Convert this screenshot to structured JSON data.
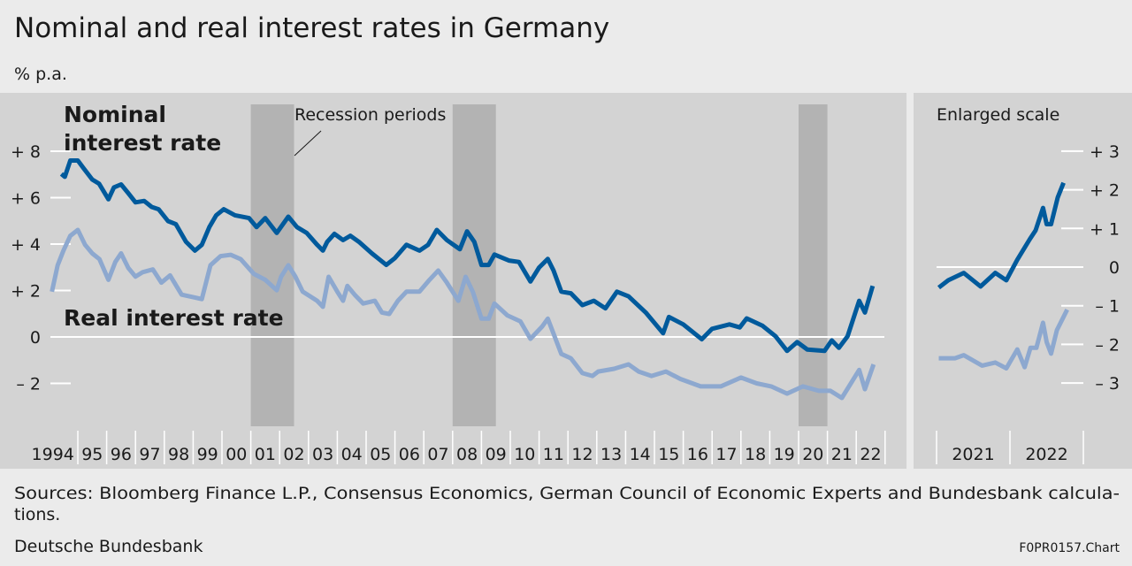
{
  "title": "Nominal and real interest rates in Germany",
  "unit": "% p.a.",
  "footer": {
    "sources_line1": "Sources: Bloomberg Finance L.P., Consensus Economics, German Council of Economic Experts and Bundesbank calcula-",
    "sources_line2": "tions.",
    "publisher": "Deutsche Bundesbank",
    "chart_code": "F0PR0157.Chart"
  },
  "colors": {
    "nominal": "#005a9c",
    "real": "#8da8cf",
    "recession": "#b3b3b3",
    "panel": "#d3d3d3",
    "background": "#ebebeb"
  },
  "chart_data": [
    {
      "type": "line",
      "title": "",
      "ylabel": "% p.a.",
      "ylim": [
        -4.2,
        10.5
      ],
      "xlim": [
        1994,
        2023
      ],
      "yticks": [
        {
          "v": 8,
          "label": "+ 8"
        },
        {
          "v": 6,
          "label": "+ 6"
        },
        {
          "v": 4,
          "label": "+ 4"
        },
        {
          "v": 2,
          "label": "+ 2"
        },
        {
          "v": 0,
          "label": "0"
        },
        {
          "v": -2,
          "label": "– 2"
        }
      ],
      "xtick_labels": [
        "1994",
        "95",
        "96",
        "97",
        "98",
        "99",
        "00",
        "01",
        "02",
        "03",
        "04",
        "05",
        "06",
        "07",
        "08",
        "09",
        "10",
        "11",
        "12",
        "13",
        "14",
        "15",
        "16",
        "17",
        "18",
        "19",
        "20",
        "21",
        "22"
      ],
      "annotation": "Recession periods",
      "recessions": [
        [
          2001.0,
          2002.5
        ],
        [
          2008.0,
          2009.5
        ],
        [
          2020.0,
          2021.0
        ]
      ],
      "series": [
        {
          "name": "Nominal interest rate",
          "name_line1": "Nominal",
          "name_line2": "interest rate",
          "x": [
            1994.43,
            1994.55,
            1994.74,
            1995.0,
            1995.2,
            1995.5,
            1995.74,
            1996.06,
            1996.25,
            1996.5,
            1996.75,
            1997.0,
            1997.3,
            1997.56,
            1997.8,
            1998.13,
            1998.4,
            1998.75,
            1999.06,
            1999.3,
            1999.56,
            1999.8,
            2000.06,
            2000.45,
            2000.94,
            2001.2,
            2001.5,
            2001.9,
            2002.3,
            2002.6,
            2002.94,
            2003.3,
            2003.5,
            2003.65,
            2003.9,
            2004.2,
            2004.45,
            2004.75,
            2005.2,
            2005.45,
            2005.7,
            2006.0,
            2006.4,
            2006.85,
            2007.15,
            2007.45,
            2007.8,
            2008.25,
            2008.5,
            2008.75,
            2009.0,
            2009.25,
            2009.45,
            2009.95,
            2010.3,
            2010.7,
            2011.0,
            2011.3,
            2011.5,
            2011.77,
            2012.1,
            2012.5,
            2012.9,
            2013.3,
            2013.7,
            2014.1,
            2014.7,
            2015.3,
            2015.5,
            2016.0,
            2016.64,
            2017.0,
            2017.6,
            2017.96,
            2018.2,
            2018.75,
            2019.2,
            2019.6,
            2019.95,
            2020.3,
            2020.9,
            2021.15,
            2021.4,
            2021.7,
            2022.1,
            2022.3,
            2022.57
          ],
          "y": [
            7.02,
            6.9,
            7.6,
            7.6,
            7.27,
            6.78,
            6.6,
            5.93,
            6.44,
            6.57,
            6.19,
            5.8,
            5.86,
            5.6,
            5.5,
            4.99,
            4.86,
            4.1,
            3.72,
            3.97,
            4.73,
            5.24,
            5.5,
            5.24,
            5.12,
            4.73,
            5.12,
            4.48,
            5.18,
            4.73,
            4.48,
            3.97,
            3.72,
            4.1,
            4.44,
            4.17,
            4.36,
            4.1,
            3.6,
            3.35,
            3.1,
            3.4,
            3.97,
            3.72,
            3.97,
            4.61,
            4.17,
            3.78,
            4.55,
            4.1,
            3.1,
            3.1,
            3.55,
            3.29,
            3.23,
            2.39,
            2.99,
            3.36,
            2.86,
            1.95,
            1.88,
            1.37,
            1.56,
            1.23,
            1.95,
            1.75,
            1.05,
            0.16,
            0.86,
            0.54,
            -0.1,
            0.35,
            0.54,
            0.41,
            0.8,
            0.48,
            0.03,
            -0.6,
            -0.22,
            -0.54,
            -0.6,
            -0.15,
            -0.47,
            0.03,
            1.56,
            1.05,
            2.2
          ]
        },
        {
          "name": "Real interest rate",
          "x": [
            1994.1,
            1994.3,
            1994.5,
            1994.74,
            1995.0,
            1995.25,
            1995.5,
            1995.75,
            1996.06,
            1996.3,
            1996.5,
            1996.75,
            1997.0,
            1997.25,
            1997.6,
            1997.9,
            1998.2,
            1998.6,
            1999.06,
            1999.3,
            1999.6,
            1999.95,
            2000.3,
            2000.65,
            2001.1,
            2001.5,
            2001.9,
            2002.05,
            2002.3,
            2002.55,
            2002.8,
            2003.3,
            2003.5,
            2003.7,
            2004.0,
            2004.2,
            2004.35,
            2004.6,
            2004.9,
            2005.3,
            2005.55,
            2005.8,
            2006.1,
            2006.4,
            2006.85,
            2007.2,
            2007.5,
            2007.8,
            2008.2,
            2008.45,
            2008.7,
            2009.0,
            2009.25,
            2009.45,
            2009.9,
            2010.35,
            2010.7,
            2011.1,
            2011.3,
            2011.77,
            2012.1,
            2012.5,
            2012.85,
            2013.05,
            2013.6,
            2014.1,
            2014.45,
            2014.9,
            2015.4,
            2015.9,
            2016.6,
            2017.3,
            2018.0,
            2018.55,
            2019.05,
            2019.6,
            2020.15,
            2020.7,
            2021.1,
            2021.5,
            2022.1,
            2022.3,
            2022.6
          ],
          "y": [
            1.95,
            3.09,
            3.72,
            4.36,
            4.61,
            3.97,
            3.6,
            3.35,
            2.46,
            3.23,
            3.6,
            2.97,
            2.6,
            2.79,
            2.91,
            2.34,
            2.65,
            1.82,
            1.7,
            1.63,
            3.09,
            3.48,
            3.54,
            3.35,
            2.72,
            2.46,
            2.01,
            2.59,
            3.09,
            2.59,
            1.95,
            1.56,
            1.3,
            2.59,
            1.95,
            1.56,
            2.2,
            1.82,
            1.44,
            1.56,
            1.05,
            0.99,
            1.56,
            1.95,
            1.95,
            2.46,
            2.86,
            2.34,
            1.56,
            2.59,
            1.95,
            0.79,
            0.79,
            1.44,
            0.93,
            0.67,
            -0.08,
            0.44,
            0.79,
            -0.73,
            -0.92,
            -1.56,
            -1.68,
            -1.49,
            -1.37,
            -1.18,
            -1.49,
            -1.68,
            -1.49,
            -1.81,
            -2.13,
            -2.13,
            -1.75,
            -2.0,
            -2.13,
            -2.44,
            -2.13,
            -2.32,
            -2.32,
            -2.63,
            -1.42,
            -2.25,
            -1.18
          ]
        }
      ]
    },
    {
      "type": "line",
      "title": "Enlarged scale",
      "ylim": [
        -3.8,
        3.5
      ],
      "xlim": [
        2021,
        2023
      ],
      "yticks": [
        {
          "v": 3,
          "label": "+ 3"
        },
        {
          "v": 2,
          "label": "+ 2"
        },
        {
          "v": 1,
          "label": "+ 1"
        },
        {
          "v": 0,
          "label": "0"
        },
        {
          "v": -1,
          "label": "– 1"
        },
        {
          "v": -2,
          "label": "– 2"
        },
        {
          "v": -3,
          "label": "– 3"
        }
      ],
      "xtick_labels": [
        "2021",
        "2022"
      ],
      "series": [
        {
          "name": "Nominal interest rate",
          "x": [
            2021.03,
            2021.16,
            2021.37,
            2021.6,
            2021.8,
            2021.95,
            2022.1,
            2022.27,
            2022.35,
            2022.45,
            2022.5,
            2022.56,
            2022.65,
            2022.73
          ],
          "y": [
            -0.53,
            -0.34,
            -0.15,
            -0.5,
            -0.15,
            -0.34,
            0.19,
            0.72,
            0.95,
            1.53,
            1.11,
            1.11,
            1.8,
            2.18
          ]
        },
        {
          "name": "Real interest rate",
          "x": [
            2021.03,
            2021.25,
            2021.37,
            2021.62,
            2021.8,
            2021.95,
            2022.1,
            2022.2,
            2022.28,
            2022.36,
            2022.45,
            2022.5,
            2022.56,
            2022.64,
            2022.78
          ],
          "y": [
            -2.36,
            -2.36,
            -2.28,
            -2.55,
            -2.47,
            -2.62,
            -2.13,
            -2.59,
            -2.09,
            -2.09,
            -1.44,
            -1.94,
            -2.24,
            -1.63,
            -1.1
          ]
        }
      ]
    }
  ]
}
